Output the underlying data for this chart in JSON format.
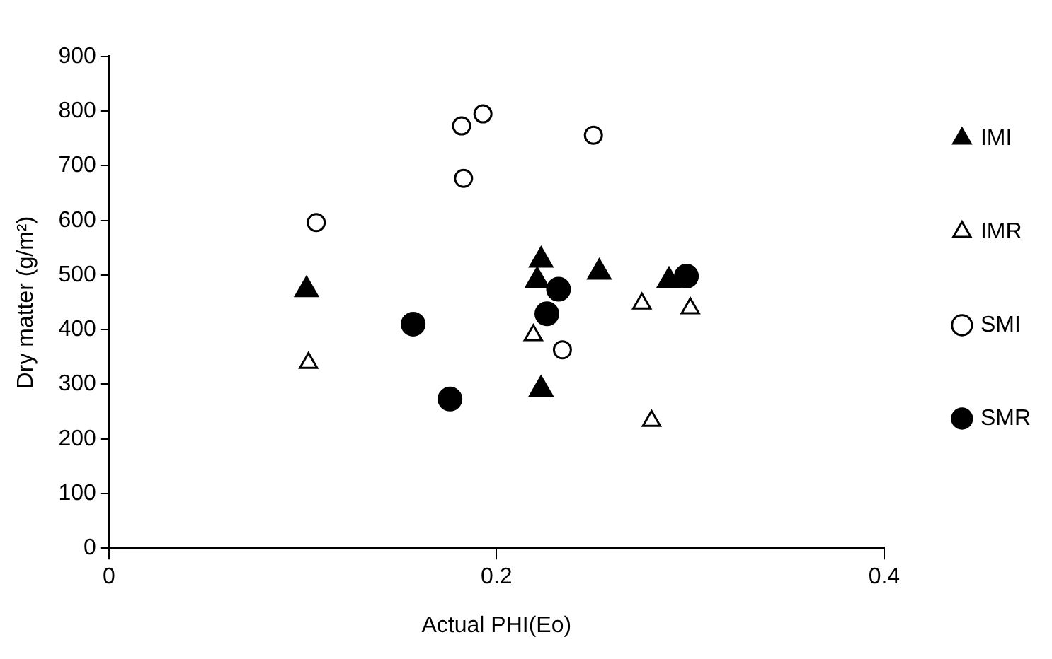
{
  "chart_data": {
    "type": "scatter",
    "xlabel": "Actual PHI(Eo)",
    "ylabel": "Dry matter (g/m²)",
    "xlim": [
      0,
      0.4
    ],
    "xticks": [
      0,
      0.2,
      0.4
    ],
    "ylim": [
      0,
      900
    ],
    "yticks": [
      0,
      100,
      200,
      300,
      400,
      500,
      600,
      700,
      800,
      900
    ],
    "grid": false,
    "legend": "top right",
    "series": [
      {
        "name": "IMI",
        "color": "#000000",
        "marker": "triangle",
        "x": [
          0.102,
          0.223,
          0.221,
          0.223,
          0.253,
          0.289
        ],
        "values": [
          473,
          527,
          490,
          291,
          505,
          490
        ]
      },
      {
        "name": "IMR",
        "color": "#ffffff",
        "marker": "triangle",
        "x": [
          0.103,
          0.219,
          0.275,
          0.28,
          0.3
        ],
        "values": [
          339,
          390,
          448,
          233,
          439
        ]
      },
      {
        "name": "SMI",
        "color": "#ffffff",
        "marker": "circle",
        "x": [
          0.107,
          0.182,
          0.183,
          0.193,
          0.25,
          0.234
        ],
        "values": [
          596,
          773,
          677,
          795,
          756,
          363
        ]
      },
      {
        "name": "SMR",
        "color": "#000000",
        "marker": "circle",
        "x": [
          0.157,
          0.176,
          0.232,
          0.226,
          0.298
        ],
        "values": [
          410,
          273,
          474,
          429,
          498
        ]
      }
    ]
  }
}
